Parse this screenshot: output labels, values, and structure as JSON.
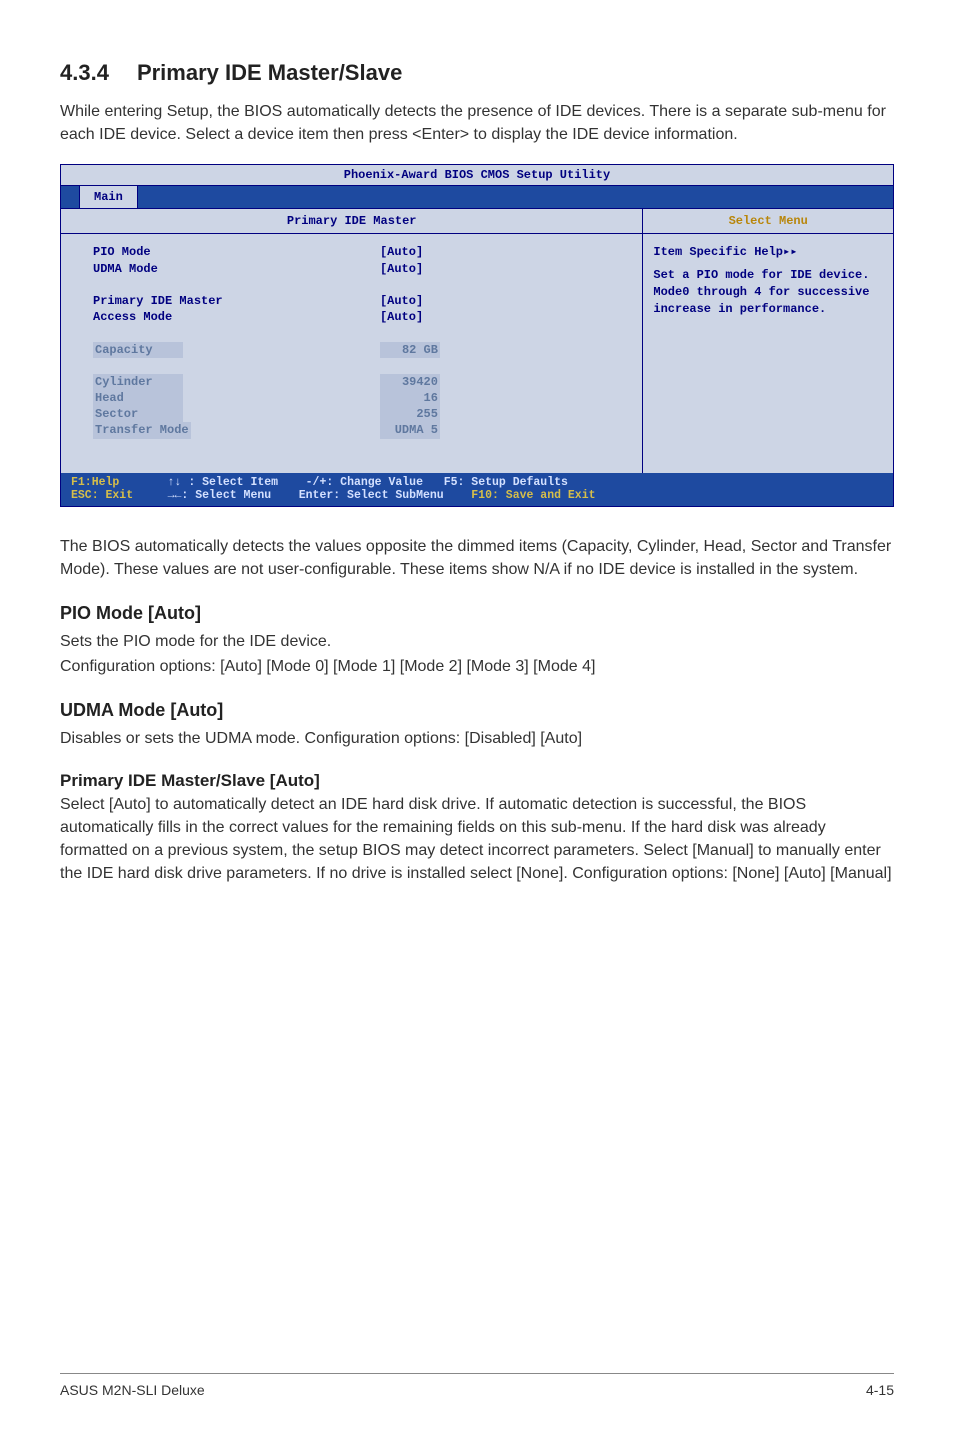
{
  "section": {
    "number": "4.3.4",
    "title": "Primary IDE Master/Slave",
    "intro": "While entering Setup, the BIOS automatically detects the presence of IDE devices. There is a separate sub-menu for each IDE device. Select a device item then press <Enter> to display the IDE device information."
  },
  "bios": {
    "title": "Phoenix-Award BIOS CMOS Setup Utility",
    "tab": "Main",
    "left_header": "Primary IDE Master",
    "right_header": "Select Menu",
    "rows": [
      {
        "label": "PIO Mode",
        "value": "[Auto]",
        "style": "bold"
      },
      {
        "label": "UDMA Mode",
        "value": "[Auto]",
        "style": "bold"
      },
      {
        "label": "",
        "value": "",
        "style": "blank"
      },
      {
        "label": "Primary IDE Master",
        "value": "[Auto]",
        "style": "bold"
      },
      {
        "label": "Access Mode",
        "value": "[Auto]",
        "style": "bold"
      },
      {
        "label": "",
        "value": "",
        "style": "blank"
      },
      {
        "label": "Capacity",
        "value": "82 GB",
        "style": "dim"
      },
      {
        "label": "",
        "value": "",
        "style": "blank"
      },
      {
        "label": "Cylinder",
        "value": "39420",
        "style": "dim"
      },
      {
        "label": "Head",
        "value": "16",
        "style": "dim"
      },
      {
        "label": "Sector",
        "value": "255",
        "style": "dim"
      },
      {
        "label": "Transfer Mode",
        "value": "UDMA 5",
        "style": "dim"
      }
    ],
    "help_title": "Item Specific Help▸▸",
    "help_body": "Set a PIO mode for IDE device. Mode0 through 4 for successive increase in performance.",
    "footer": {
      "l1c1": "F1:Help       ",
      "l1c2": "↑↓ : Select Item    ",
      "l1c3": "-/+: Change Value   ",
      "l1c4": "F5: Setup Defaults",
      "l2c1": "ESC: Exit     ",
      "l2c2": "→←: Select Menu    ",
      "l2c3": "Enter: Select SubMenu    ",
      "l2c4": "F10: Save and Exit"
    }
  },
  "after_bios_para": "The BIOS automatically detects the values opposite the dimmed items (Capacity, Cylinder,  Head, Sector and Transfer Mode). These values are not user-configurable. These items show N/A if no IDE device is installed in the system.",
  "pio": {
    "heading": "PIO Mode [Auto]",
    "line1": "Sets the PIO mode for the IDE device.",
    "line2": "Configuration options: [Auto] [Mode 0] [Mode 1] [Mode 2] [Mode 3] [Mode 4]"
  },
  "udma": {
    "heading": "UDMA Mode [Auto]",
    "line1": "Disables or sets the UDMA mode. Configuration options: [Disabled] [Auto]"
  },
  "primary": {
    "heading": "Primary IDE Master/Slave [Auto]",
    "body": "Select [Auto] to automatically detect an IDE hard disk drive. If automatic detection is successful, the BIOS automatically fills in the correct values for the remaining fields on this sub-menu. If the hard disk was already formatted on a previous system, the setup BIOS may detect incorrect parameters. Select [Manual] to manually enter the IDE hard disk drive parameters. If no drive is installed select [None]. Configuration options: [None] [Auto] [Manual]"
  },
  "footer": {
    "left": "ASUS M2N-SLI Deluxe",
    "right": "4-15"
  }
}
